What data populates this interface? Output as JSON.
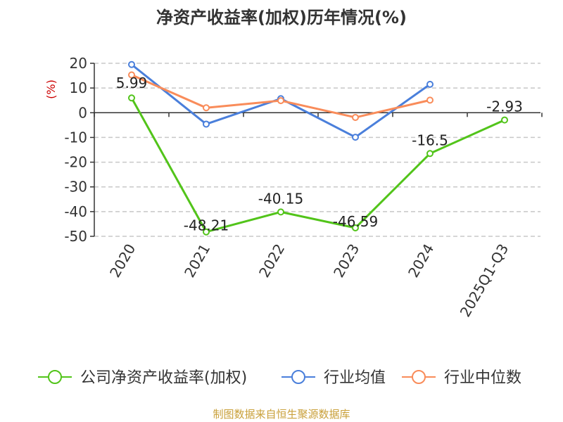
{
  "chart_data": {
    "type": "line",
    "title": "净资产收益率(加权)历年情况(%)",
    "ylabel": "(%)",
    "categories": [
      "2020",
      "2021",
      "2022",
      "2023",
      "2024",
      "2025Q1-Q3"
    ],
    "ylim": [
      -50,
      20
    ],
    "yticks": [
      20,
      10,
      0,
      -10,
      -20,
      -30,
      -40,
      -50
    ],
    "grid": true,
    "legend_position": "bottom",
    "series": [
      {
        "name": "公司净资产收益率(加权)",
        "color": "#52c41a",
        "values": [
          5.99,
          -48.21,
          -40.15,
          -46.59,
          -16.5,
          -2.93
        ],
        "labels": [
          "5.99",
          "-48.21",
          "-40.15",
          "-46.59",
          "-16.5",
          "-2.93"
        ]
      },
      {
        "name": "行业均值",
        "color": "#4a7fdb",
        "values": [
          19.5,
          -4.6,
          5.7,
          -9.9,
          11.5,
          null
        ]
      },
      {
        "name": "行业中位数",
        "color": "#f98c5a",
        "values": [
          15.3,
          2.0,
          4.9,
          -1.9,
          5.1,
          null
        ]
      }
    ],
    "source": "制图数据来自恒生聚源数据库"
  }
}
